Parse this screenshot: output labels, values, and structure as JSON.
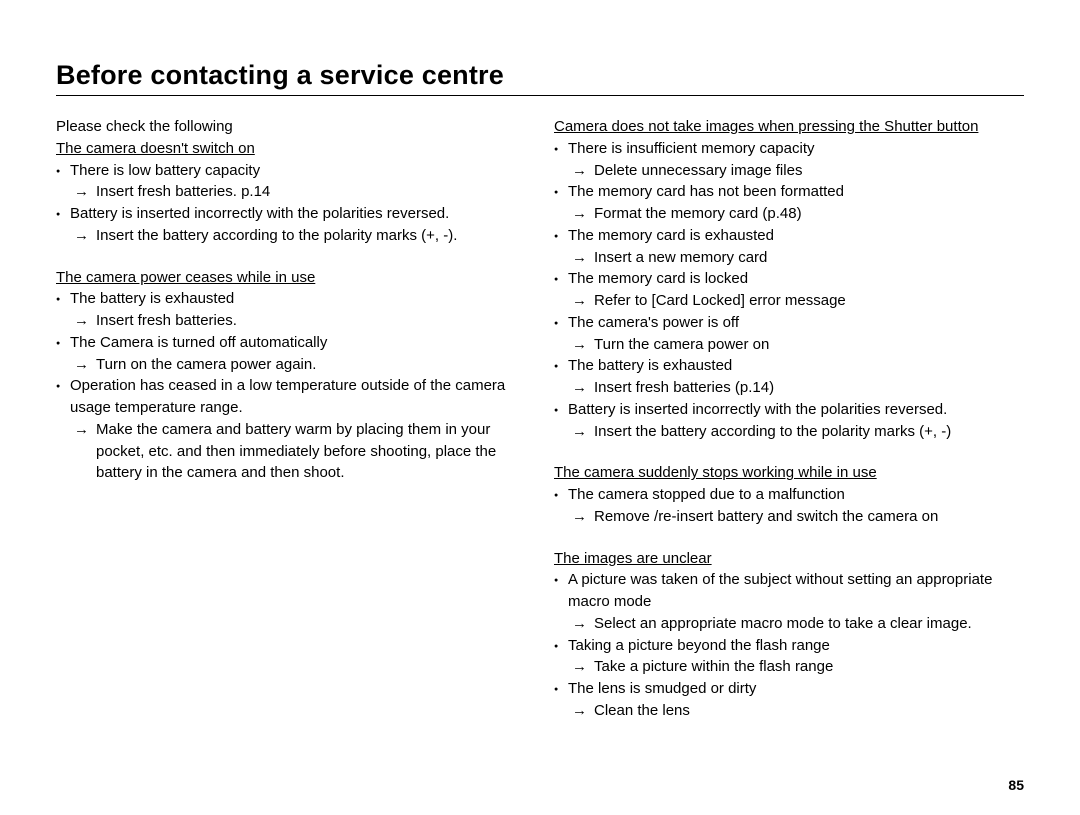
{
  "page_number": "85",
  "title": "Before contacting a service centre",
  "intro": "Please check the following",
  "columns": [
    {
      "sections": [
        {
          "heading": "The camera doesn't switch on",
          "items": [
            {
              "cause": "There is low battery capacity",
              "solution": " Insert fresh batteries. p.14"
            },
            {
              "cause": "Battery is inserted incorrectly with the polarities reversed.",
              "solution": "Insert the battery according to the polarity marks (+, -)."
            }
          ]
        },
        {
          "heading": "The camera power ceases while in use",
          "items": [
            {
              "cause": "The battery is exhausted",
              "solution": "Insert fresh batteries."
            },
            {
              "cause": "The Camera is turned off automatically",
              "solution": "Turn on the camera power again."
            },
            {
              "cause": "Operation has ceased in a low temperature outside of the camera usage temperature range.",
              "solution": "Make the camera and battery warm by placing them in your pocket, etc. and then immediately before shooting, place the battery in the camera and then shoot."
            }
          ]
        }
      ]
    },
    {
      "sections": [
        {
          "heading": "Camera does not take images when pressing the Shutter button",
          "items": [
            {
              "cause": "There is insufficient memory capacity",
              "solution": "Delete unnecessary image files"
            },
            {
              "cause": "The memory card has not been formatted",
              "solution": "Format the memory card (p.48)"
            },
            {
              "cause": "The memory card is exhausted",
              "solution": "Insert a new memory card"
            },
            {
              "cause": "The memory card is locked",
              "solution": "Refer to [Card Locked] error message"
            },
            {
              "cause": "The camera's power is off",
              "solution": "Turn the camera power on"
            },
            {
              "cause": "The battery is exhausted",
              "solution": "Insert fresh batteries (p.14)"
            },
            {
              "cause": "Battery is inserted incorrectly with the polarities reversed.",
              "solution": "Insert the battery according to the polarity marks (+, -)"
            }
          ]
        },
        {
          "heading": "The camera suddenly stops working while in use",
          "items": [
            {
              "cause": "The camera stopped due to a malfunction",
              "solution": "Remove /re-insert battery and switch the camera on"
            }
          ]
        },
        {
          "heading": "The images are unclear",
          "items": [
            {
              "cause": "A picture was taken of the subject without setting an appropriate macro mode",
              "solution": "Select an appropriate macro mode to take a clear image."
            },
            {
              "cause": "Taking a picture beyond the flash range",
              "solution": "Take a picture within the flash range"
            },
            {
              "cause": "The lens is smudged or dirty",
              "solution": "Clean the lens"
            }
          ]
        }
      ]
    }
  ]
}
